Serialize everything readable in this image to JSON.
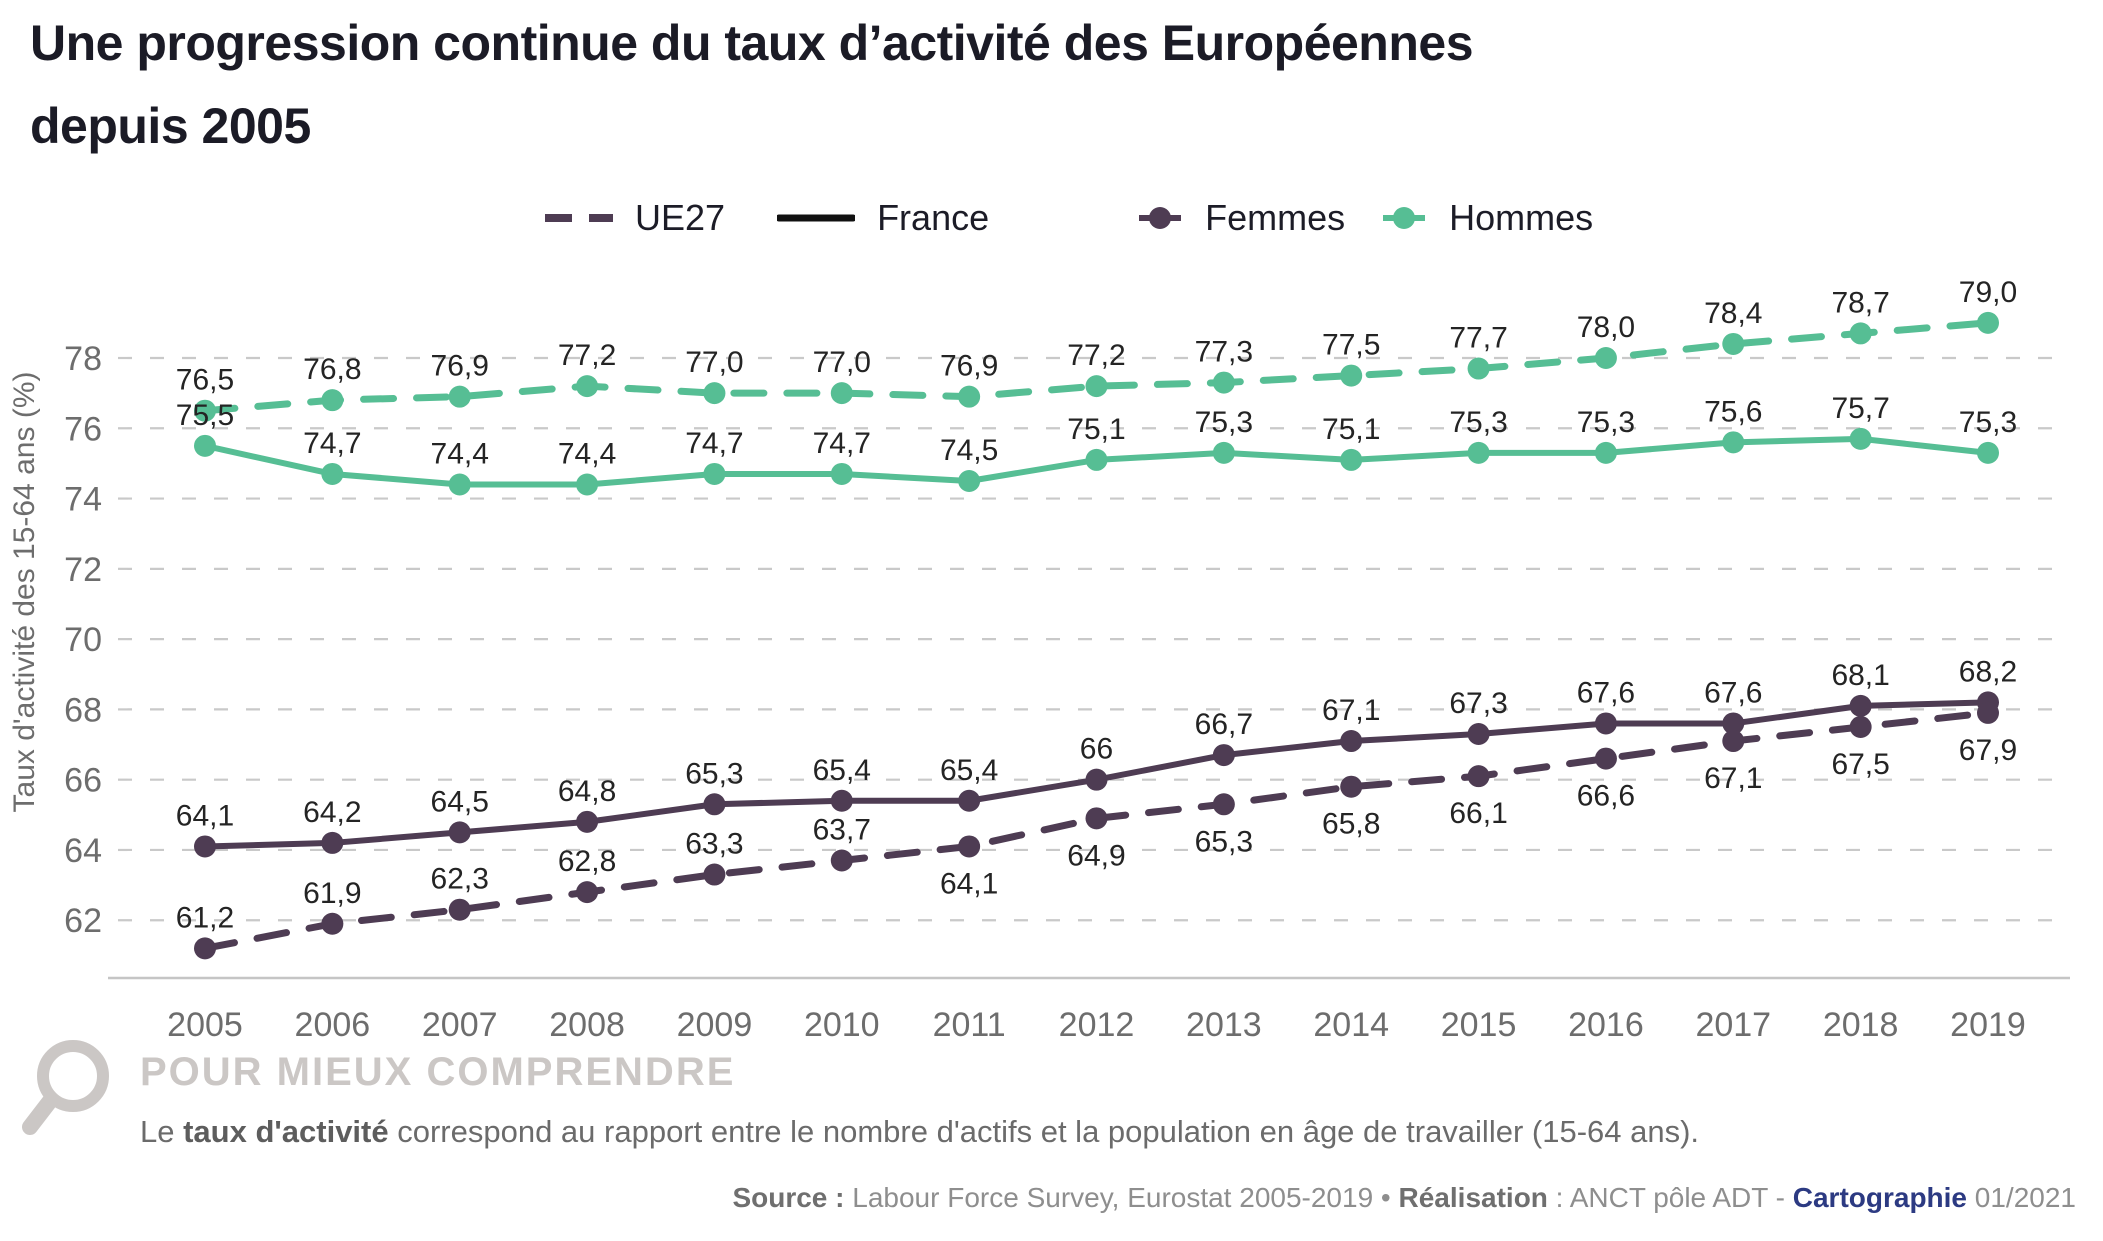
{
  "title": {
    "line1": "Une progression continue du taux d’activité des Européennes",
    "line2": "depuis 2005"
  },
  "colors": {
    "hommes_teal": "#56be94",
    "femmes_purple": "#4e3c53",
    "france_black": "#111111",
    "grid_gray": "#c9c9c9",
    "axis_text_gray": "#6d6d6d",
    "label_dark": "#242424",
    "footer_light_gray": "#cbc7c5",
    "brand_navy": "#2c3a82"
  },
  "legend": {
    "ue27": "UE27",
    "france": "France",
    "femmes": "Femmes",
    "hommes": "Hommes"
  },
  "chart_data": {
    "type": "line",
    "x": [
      2005,
      2006,
      2007,
      2008,
      2009,
      2010,
      2011,
      2012,
      2013,
      2014,
      2015,
      2016,
      2017,
      2018,
      2019
    ],
    "ylabel": "Taux d'activité des 15-64 ans (%)",
    "yticks": [
      62,
      64,
      66,
      68,
      70,
      72,
      74,
      76,
      78
    ],
    "ylim": [
      60.3,
      79.6
    ],
    "grid": "dashed-horizontal",
    "legend_position": "top",
    "series": [
      {
        "name": "Hommes UE27",
        "style": "dashed",
        "color": "#56be94",
        "values": [
          76.5,
          76.8,
          76.9,
          77.2,
          77.0,
          77.0,
          76.9,
          77.2,
          77.3,
          77.5,
          77.7,
          78.0,
          78.4,
          78.7,
          79.0
        ],
        "labels": [
          "76,5",
          "76,8",
          "76,9",
          "77,2",
          "77,0",
          "77,0",
          "76,9",
          "77,2",
          "77,3",
          "77,5",
          "77,7",
          "78,0",
          "78,4",
          "78,7",
          "79,0"
        ],
        "label_side": "above"
      },
      {
        "name": "Hommes France",
        "style": "solid",
        "color": "#56be94",
        "values": [
          75.5,
          74.7,
          74.4,
          74.4,
          74.7,
          74.7,
          74.5,
          75.1,
          75.3,
          75.1,
          75.3,
          75.3,
          75.6,
          75.7,
          75.3
        ],
        "labels": [
          "75,5",
          "74,7",
          "74,4",
          "74,4",
          "74,7",
          "74,7",
          "74,5",
          "75,1",
          "75,3",
          "75,1",
          "75,3",
          "75,3",
          "75,6",
          "75,7",
          "75,3"
        ],
        "label_side": "above"
      },
      {
        "name": "Femmes France",
        "style": "solid",
        "color": "#4e3c53",
        "values": [
          64.1,
          64.2,
          64.5,
          64.8,
          65.3,
          65.4,
          65.4,
          66,
          66.7,
          67.1,
          67.3,
          67.6,
          67.6,
          68.1,
          68.2
        ],
        "labels": [
          "64,1",
          "64,2",
          "64,5",
          "64,8",
          "65,3",
          "65,4",
          "65,4",
          "66",
          "66,7",
          "67,1",
          "67,3",
          "67,6",
          "67,6",
          "68,1",
          "68,2"
        ],
        "label_side": "above"
      },
      {
        "name": "Femmes UE27",
        "style": "dashed",
        "color": "#4e3c53",
        "values": [
          61.2,
          61.9,
          62.3,
          62.8,
          63.3,
          63.7,
          64.1,
          64.9,
          65.3,
          65.8,
          66.1,
          66.6,
          67.1,
          67.5,
          67.9
        ],
        "labels": [
          "61,2",
          "61,9",
          "62,3",
          "62,8",
          "63,3",
          "63,7",
          "64,1",
          "64,9",
          "65,3",
          "65,8",
          "66,1",
          "66,6",
          "67,1",
          "67,5",
          "67,9"
        ],
        "label_side": [
          "above",
          "above",
          "above",
          "above",
          "above",
          "above",
          "below",
          "below",
          "below",
          "below",
          "below",
          "below",
          "below",
          "below",
          "below"
        ]
      }
    ]
  },
  "footer": {
    "explainer_heading": "POUR MIEUX COMPRENDRE",
    "explainer_pre": "Le ",
    "explainer_bold": "taux d'activité",
    "explainer_post": " correspond au rapport entre le nombre d'actifs et la population en âge de travailler (15-64 ans).",
    "source": {
      "s1": "Source :",
      "s2": " Labour Force Survey, Eurostat 2005-2019 • ",
      "s3": "Réalisation",
      "s4": " : ANCT pôle ADT - ",
      "s5": "Cartographie",
      "s6": " 01/2021"
    }
  }
}
